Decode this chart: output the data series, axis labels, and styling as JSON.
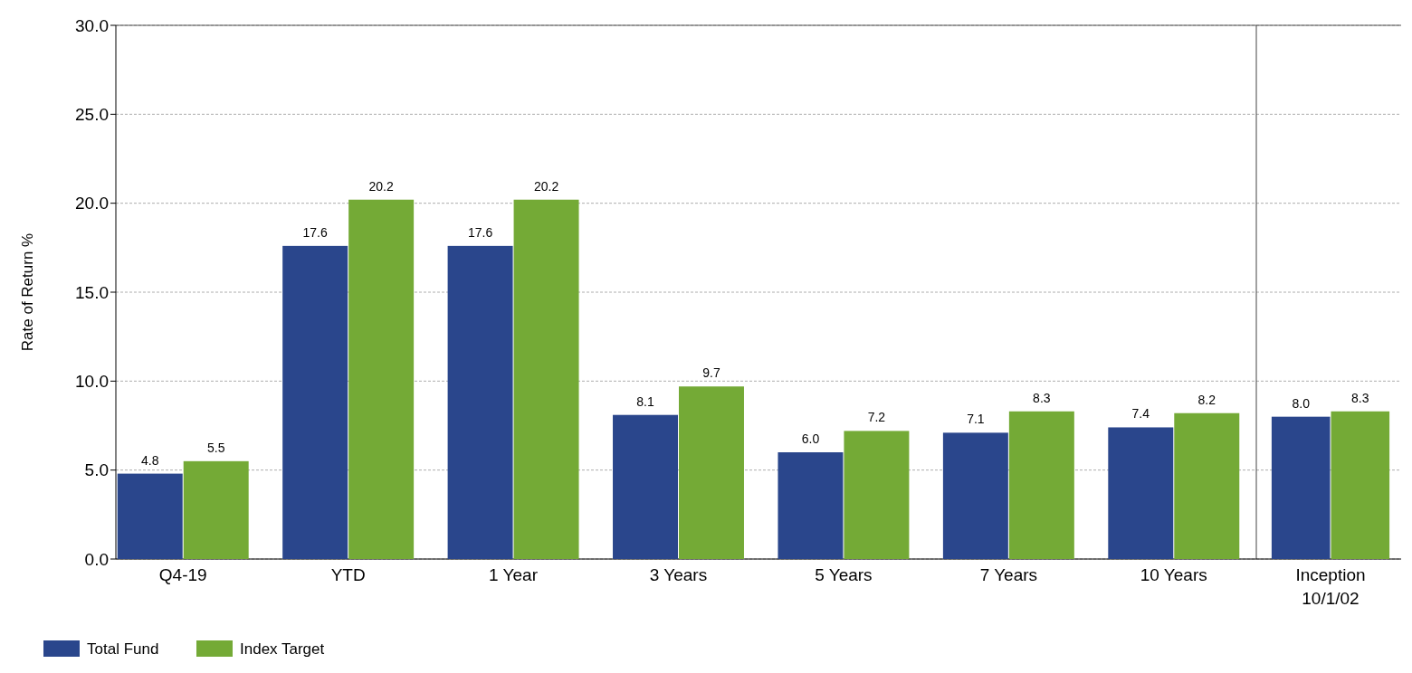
{
  "chart_data": [
    {
      "type": "bar",
      "ylabel": "Rate of Return %",
      "categories": [
        "Q4-19",
        "YTD",
        "1 Year",
        "3 Years",
        "5 Years",
        "7 Years",
        "10 Years"
      ],
      "series": [
        {
          "name": "Total Fund",
          "color": "#2a468c",
          "values": [
            4.8,
            17.6,
            17.6,
            8.1,
            6.0,
            7.1,
            7.4
          ],
          "value_labels": [
            "4.8",
            "17.6",
            "17.6",
            "8.1",
            "6.0",
            "7.1",
            "7.4"
          ]
        },
        {
          "name": "Index Target",
          "color": "#74aa36",
          "values": [
            5.5,
            20.2,
            20.2,
            9.7,
            7.2,
            8.3,
            8.2
          ],
          "value_labels": [
            "5.5",
            "20.2",
            "20.2",
            "9.7",
            "7.2",
            "8.3",
            "8.2"
          ]
        }
      ],
      "ylim": [
        0,
        30
      ],
      "yticks": [
        {
          "value": 0,
          "label": "0.0"
        },
        {
          "value": 5,
          "label": "5.0"
        },
        {
          "value": 10,
          "label": "10.0"
        },
        {
          "value": 15,
          "label": "15.0"
        },
        {
          "value": 20,
          "label": "20.0"
        },
        {
          "value": 25,
          "label": "25.0"
        },
        {
          "value": 30,
          "label": "30.0"
        }
      ],
      "grid": "y",
      "legend": "bottom left"
    },
    {
      "type": "bar",
      "categories": [
        "Inception\n10/1/02"
      ],
      "series": [
        {
          "color": "#2a468c",
          "values": [
            8.0
          ],
          "value_labels": [
            "8.0"
          ]
        },
        {
          "color": "#74aa36",
          "values": [
            8.3
          ],
          "value_labels": [
            "8.3"
          ]
        }
      ],
      "ylim": [
        0,
        30
      ],
      "yticks": [
        0,
        5,
        10,
        15,
        20,
        25,
        30
      ],
      "tick_labels": "x",
      "grid": "y"
    }
  ]
}
